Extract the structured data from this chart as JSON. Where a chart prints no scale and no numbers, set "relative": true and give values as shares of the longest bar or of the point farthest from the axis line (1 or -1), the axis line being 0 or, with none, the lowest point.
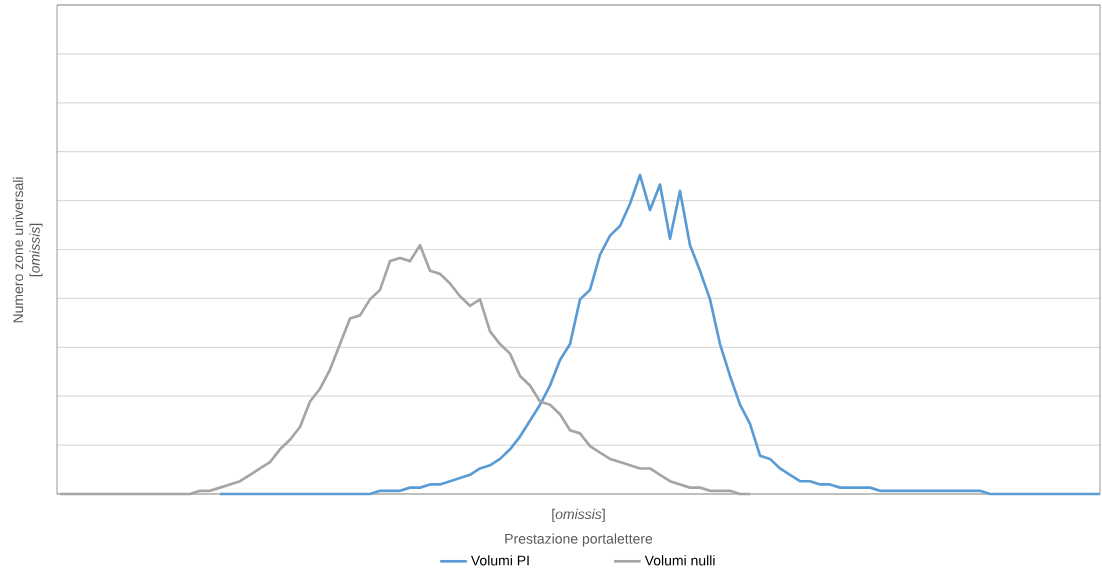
{
  "chart_data": {
    "type": "line",
    "relative": true,
    "xlabel": "Prestazione portalettere",
    "ylabel": "Numero zone universali",
    "annotations": [
      "[*omissis*]",
      "[*omissis*]"
    ],
    "grid": "y",
    "legend": "bottom",
    "marker": "none",
    "line_style": "solid",
    "categories": [
      null,
      null,
      null,
      null,
      null,
      null,
      null,
      null,
      null,
      null,
      null,
      null,
      null,
      null,
      null,
      null,
      null,
      null,
      null,
      null,
      null,
      null,
      null,
      null,
      null,
      null,
      null,
      null,
      null,
      null,
      null,
      null,
      null,
      null,
      null,
      null,
      null,
      null,
      null,
      null,
      null,
      null,
      null,
      null,
      null,
      null,
      null,
      null,
      null,
      null,
      null,
      null,
      null,
      null,
      null,
      null,
      null,
      null,
      null,
      null,
      null,
      null,
      null,
      null,
      null,
      null,
      null,
      null,
      null,
      null,
      null,
      null,
      null,
      null,
      null,
      null,
      null,
      null,
      null,
      null,
      null,
      null,
      null,
      null,
      null,
      null,
      null,
      null,
      null,
      null,
      null,
      null,
      null,
      null,
      null,
      null,
      null,
      null,
      null,
      null,
      null,
      null,
      null,
      null,
      null
    ],
    "series": [
      {
        "name": "Volumi PI",
        "color": "#5b9bd5",
        "values": [
          null,
          null,
          null,
          null,
          null,
          null,
          null,
          null,
          null,
          null,
          null,
          null,
          null,
          null,
          null,
          null,
          0,
          0,
          0,
          0,
          0,
          0,
          0,
          0,
          0,
          0,
          0,
          0,
          0,
          0,
          0.0,
          0.0,
          0.01,
          0.01,
          0.01,
          0.02,
          0.02,
          0.03,
          0.03,
          0.04,
          0.05,
          0.06,
          0.08,
          0.09,
          0.11,
          0.14,
          0.18,
          0.23,
          0.28,
          0.34,
          0.42,
          0.47,
          0.61,
          0.64,
          0.75,
          0.81,
          0.84,
          0.91,
          1.0,
          0.89,
          0.97,
          0.8,
          0.95,
          0.78,
          0.7,
          0.61,
          0.47,
          0.37,
          0.28,
          0.22,
          0.12,
          0.11,
          0.08,
          0.06,
          0.04,
          0.04,
          0.03,
          0.03,
          0.02,
          0.02,
          0.02,
          0.02,
          0.01,
          0.01,
          0.01,
          0.01,
          0.01,
          0.01,
          0.01,
          0.01,
          0.01,
          0.01,
          0.01,
          0.0,
          0.0,
          0.0,
          0.0,
          0.0,
          0.0,
          0.0,
          0.0,
          0.0,
          0.0,
          0.0,
          0.0
        ]
      },
      {
        "name": "Volumi nulli",
        "color": "#a5a5a5",
        "values": [
          0,
          0,
          0,
          0,
          0,
          0,
          0,
          0,
          0,
          0,
          0,
          0,
          0,
          0.0,
          0.01,
          0.01,
          0.02,
          0.03,
          0.04,
          0.06,
          0.08,
          0.1,
          0.14,
          0.17,
          0.21,
          0.29,
          0.33,
          0.39,
          0.47,
          0.55,
          0.56,
          0.61,
          0.64,
          0.73,
          0.74,
          0.73,
          0.78,
          0.7,
          0.69,
          0.66,
          0.62,
          0.59,
          0.61,
          0.51,
          0.47,
          0.44,
          0.37,
          0.34,
          0.29,
          0.28,
          0.25,
          0.2,
          0.19,
          0.15,
          0.13,
          0.11,
          0.1,
          0.09,
          0.08,
          0.08,
          0.06,
          0.04,
          0.03,
          0.02,
          0.02,
          0.01,
          0.01,
          0.01,
          0.0,
          0,
          null,
          null,
          null,
          null,
          null,
          null,
          null,
          null,
          null,
          null,
          null,
          null,
          null,
          null,
          null,
          null,
          null,
          null,
          null,
          null,
          null,
          null,
          null,
          null,
          null,
          null,
          null,
          null,
          null,
          null,
          null,
          null,
          null,
          null,
          null
        ]
      }
    ]
  }
}
